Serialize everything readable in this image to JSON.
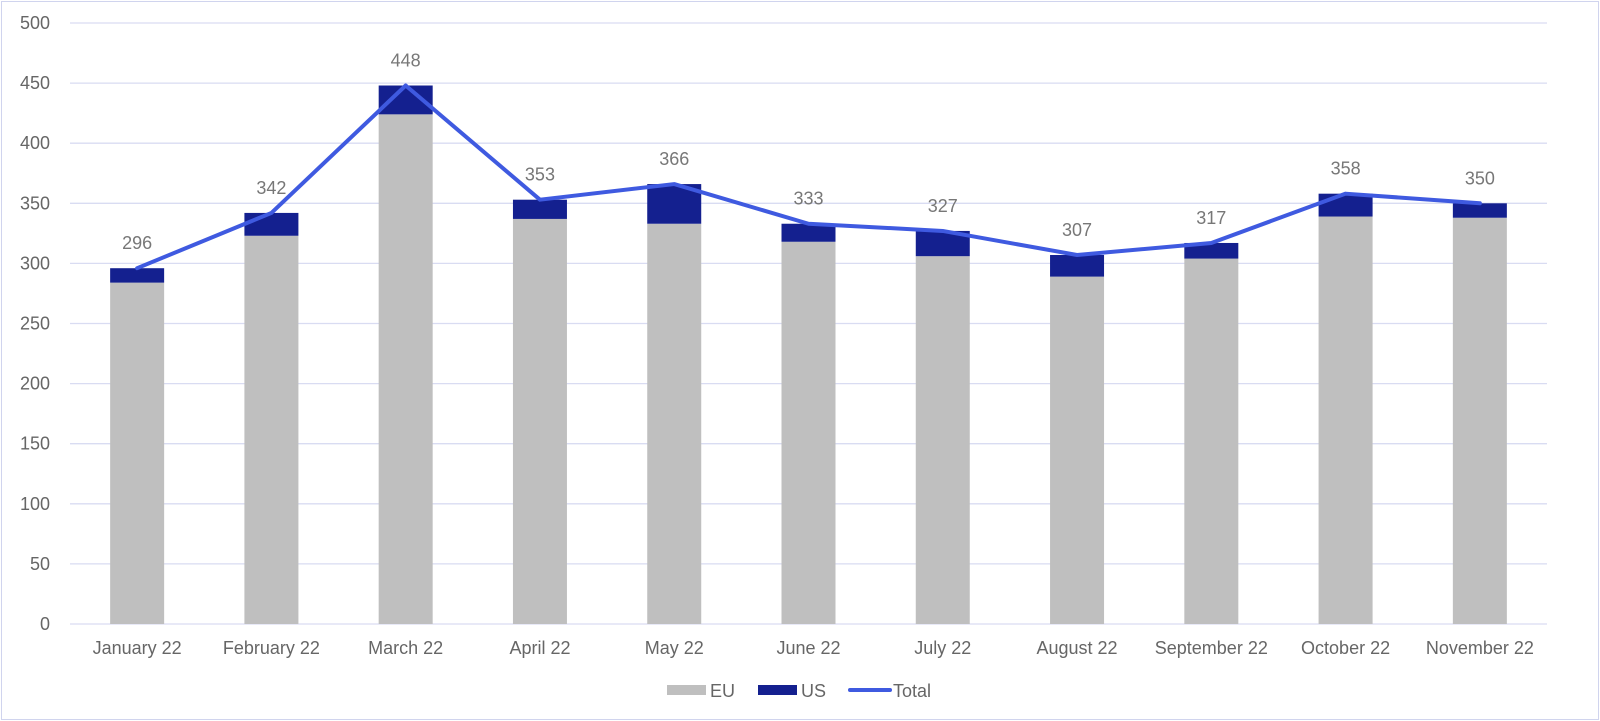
{
  "chart_data": {
    "type": "bar",
    "stacked": true,
    "categories": [
      "January 22",
      "February 22",
      "March 22",
      "April 22",
      "May 22",
      "June 22",
      "July 22",
      "August 22",
      "September 22",
      "October 22",
      "November 22"
    ],
    "series": [
      {
        "name": "EU",
        "kind": "bar",
        "color": "#bfbfbf",
        "values": [
          284,
          323,
          424,
          337,
          333,
          318,
          306,
          289,
          304,
          339,
          338
        ]
      },
      {
        "name": "US",
        "kind": "bar",
        "color": "#14208f",
        "values": [
          12,
          19,
          24,
          16,
          33,
          15,
          21,
          18,
          13,
          19,
          12
        ]
      },
      {
        "name": "Total",
        "kind": "line",
        "color": "#3f5ae0",
        "values": [
          296,
          342,
          448,
          353,
          366,
          333,
          327,
          307,
          317,
          358,
          350
        ]
      }
    ],
    "data_labels": [
      "296",
      "342",
      "448",
      "353",
      "366",
      "333",
      "327",
      "307",
      "317",
      "358",
      "350"
    ],
    "yticks": [
      0,
      50,
      100,
      150,
      200,
      250,
      300,
      350,
      400,
      450,
      500
    ],
    "ylim": [
      0,
      500
    ],
    "grid": true,
    "legend": {
      "position": "bottom",
      "entries": [
        "EU",
        "US",
        "Total"
      ]
    },
    "title": "",
    "xlabel": "",
    "ylabel": ""
  }
}
